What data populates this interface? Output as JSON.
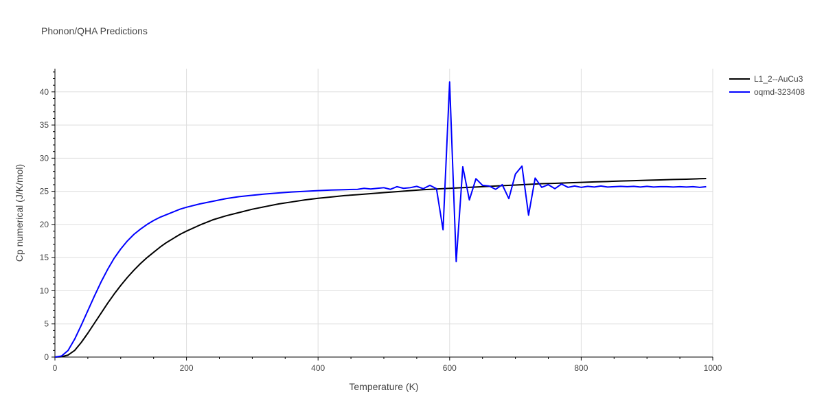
{
  "chart_data": {
    "type": "line",
    "title": "Phonon/QHA Predictions",
    "xlabel": "Temperature (K)",
    "ylabel": "Cp numerical (J/K/mol)",
    "xlim": [
      0,
      1000
    ],
    "ylim": [
      0,
      43.5
    ],
    "xticks": [
      0,
      200,
      400,
      600,
      800,
      1000
    ],
    "yticks": [
      0,
      5,
      10,
      15,
      20,
      25,
      30,
      35,
      40
    ],
    "grid": true,
    "legend_position": "top-right",
    "series": [
      {
        "name": "L1_2--AuCu3",
        "color": "#000000",
        "x": [
          0,
          10,
          20,
          30,
          40,
          50,
          60,
          70,
          80,
          90,
          100,
          110,
          120,
          130,
          140,
          150,
          160,
          170,
          180,
          190,
          200,
          220,
          240,
          260,
          280,
          300,
          320,
          340,
          360,
          380,
          400,
          420,
          440,
          460,
          480,
          500,
          520,
          540,
          560,
          580,
          600,
          620,
          640,
          660,
          680,
          700,
          720,
          740,
          760,
          780,
          800,
          820,
          840,
          860,
          880,
          900,
          920,
          940,
          960,
          980,
          990
        ],
        "values": [
          0,
          0.05,
          0.3,
          1,
          2.2,
          3.6,
          5.1,
          6.6,
          8.1,
          9.5,
          10.8,
          12,
          13.1,
          14.1,
          15,
          15.8,
          16.6,
          17.3,
          17.9,
          18.5,
          19,
          19.9,
          20.7,
          21.3,
          21.8,
          22.3,
          22.7,
          23.1,
          23.4,
          23.7,
          23.95,
          24.15,
          24.35,
          24.5,
          24.65,
          24.8,
          24.95,
          25.1,
          25.25,
          25.35,
          25.45,
          25.55,
          25.65,
          25.75,
          25.85,
          25.95,
          26.05,
          26.15,
          26.2,
          26.28,
          26.35,
          26.42,
          26.48,
          26.55,
          26.6,
          26.67,
          26.72,
          26.78,
          26.83,
          26.9,
          26.93
        ]
      },
      {
        "name": "oqmd-323408",
        "color": "#0000ff",
        "x": [
          0,
          10,
          20,
          30,
          40,
          50,
          60,
          70,
          80,
          90,
          100,
          110,
          120,
          130,
          140,
          150,
          160,
          170,
          180,
          190,
          200,
          220,
          240,
          260,
          280,
          300,
          320,
          340,
          360,
          380,
          400,
          420,
          440,
          460,
          470,
          480,
          490,
          500,
          510,
          520,
          530,
          540,
          550,
          560,
          570,
          580,
          590,
          600,
          610,
          620,
          630,
          640,
          650,
          660,
          670,
          680,
          690,
          700,
          710,
          720,
          730,
          740,
          750,
          760,
          770,
          780,
          790,
          800,
          810,
          820,
          830,
          840,
          850,
          860,
          870,
          880,
          890,
          900,
          910,
          920,
          930,
          940,
          950,
          960,
          970,
          980,
          990
        ],
        "values": [
          0,
          0.15,
          1,
          2.7,
          4.8,
          7,
          9.2,
          11.3,
          13.2,
          14.9,
          16.3,
          17.5,
          18.5,
          19.3,
          20,
          20.6,
          21.1,
          21.5,
          21.9,
          22.3,
          22.6,
          23.1,
          23.5,
          23.9,
          24.2,
          24.4,
          24.6,
          24.75,
          24.9,
          25,
          25.1,
          25.2,
          25.25,
          25.3,
          25.45,
          25.35,
          25.45,
          25.55,
          25.3,
          25.7,
          25.45,
          25.55,
          25.75,
          25.4,
          25.9,
          25.4,
          19.2,
          41.5,
          14.4,
          28.7,
          23.7,
          26.9,
          25.9,
          25.8,
          25.3,
          26,
          23.9,
          27.6,
          28.8,
          21.4,
          27,
          25.6,
          26,
          25.4,
          26.1,
          25.6,
          25.8,
          25.6,
          25.75,
          25.65,
          25.8,
          25.65,
          25.7,
          25.75,
          25.7,
          25.75,
          25.65,
          25.75,
          25.65,
          25.7,
          25.7,
          25.65,
          25.7,
          25.65,
          25.7,
          25.6,
          25.7
        ]
      }
    ]
  }
}
